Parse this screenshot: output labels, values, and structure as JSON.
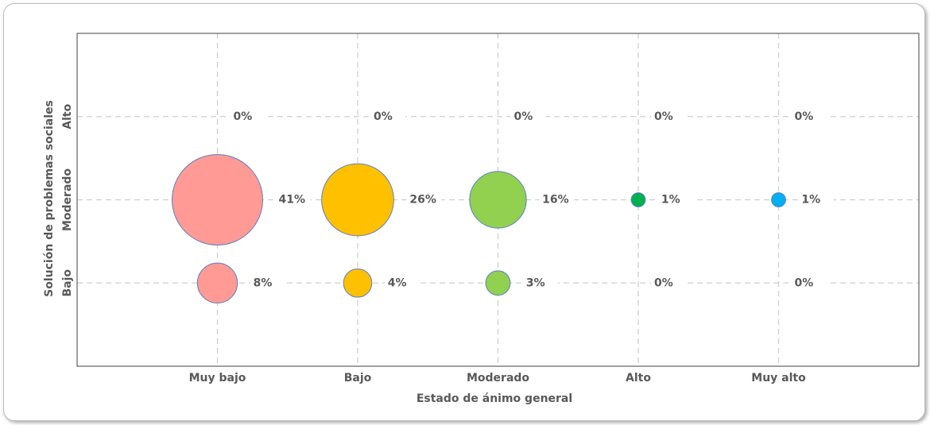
{
  "chart_data": {
    "type": "bubble",
    "x_label": "Estado de ánimo general",
    "y_label": "Solución de problemas sociales",
    "categories": [
      "Muy bajo",
      "Bajo",
      "Moderado",
      "Alto",
      "Muy alto"
    ],
    "y_categories": [
      "Bajo",
      "Moderado",
      "Alto"
    ],
    "colors": [
      "#ff9a94",
      "#ffc000",
      "#92d050",
      "#00b050",
      "#00b0f0"
    ],
    "sizes": [
      [
        8,
        4,
        3,
        0,
        0
      ],
      [
        41,
        26,
        16,
        1,
        1
      ],
      [
        0,
        0,
        0,
        0,
        0
      ]
    ],
    "value_labels": [
      [
        "8%",
        "4%",
        "3%",
        "0%",
        "0%"
      ],
      [
        "41%",
        "26%",
        "16%",
        "1%",
        "1%"
      ],
      [
        "0%",
        "0%",
        "0%",
        "0%",
        "0%"
      ]
    ],
    "xlim": [
      0,
      6
    ],
    "ylim": [
      0,
      4
    ],
    "grid": true
  }
}
